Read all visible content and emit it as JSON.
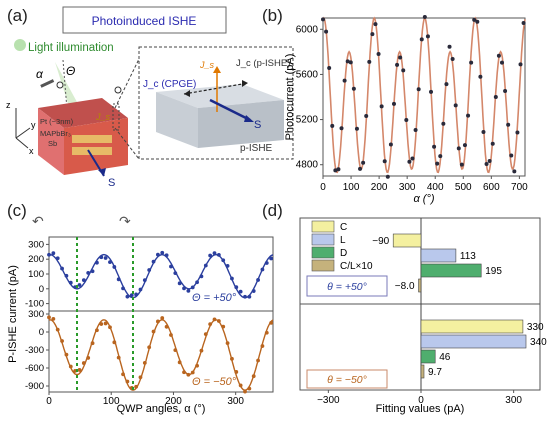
{
  "panels": {
    "a": "(a)",
    "b": "(b)",
    "c": "(c)",
    "d": "(d)"
  },
  "schematic": {
    "title": "Photoinduced ISHE",
    "light": "Light illumination",
    "alpha_sym": "α",
    "theta_sym": "Θ",
    "layer_top": "Pt (~3nm)",
    "layer_mid": "MAPbBr₃",
    "layer_bot": "Sb",
    "spin": "S",
    "axis_z": "z",
    "axis_y": "y",
    "axis_x": "x",
    "jc_cpge": "J_c (CPGE)",
    "jc_pishe": "J_c (p-ISHE)",
    "js": "J_s",
    "box_label": "p-ISHE",
    "box_spin": "S"
  },
  "chart_data": [
    {
      "id": "b",
      "type": "scatter",
      "xlabel": "α (°)",
      "ylabel": "Photocurrent (pA)",
      "xlim": [
        0,
        720
      ],
      "ylim": [
        4700,
        6100
      ],
      "xticks": [
        "0",
        "100",
        "200",
        "300",
        "400",
        "500",
        "600",
        "700"
      ],
      "yticks": [
        "4800",
        "5200",
        "5600",
        "6000"
      ],
      "series": [
        {
          "kind": "points",
          "color": "#2a2a3a"
        },
        {
          "kind": "fit",
          "color": "#d4876a"
        }
      ],
      "fit_params": {
        "offset": 5350,
        "amp1": 600,
        "amp2": 0
      }
    },
    {
      "id": "c",
      "type": "scatter",
      "xlabel": "QWP angles, α (°)",
      "ylabel": "P-ISHE current (pA)",
      "xlim": [
        0,
        360
      ],
      "xticks": [
        "0",
        "100",
        "200",
        "300"
      ],
      "subplots": [
        {
          "label": "Θ = +50°",
          "color": "#2b3f9e",
          "ylim": [
            -150,
            350
          ],
          "yticks": [
            "300",
            "200",
            "100",
            "0",
            "-100"
          ]
        },
        {
          "label": "Θ = −50°",
          "color": "#b9651f",
          "ylim": [
            -1000,
            350
          ],
          "yticks": [
            "300",
            "0",
            "-300",
            "-600",
            "-900"
          ]
        }
      ],
      "vlines": [
        45,
        135
      ]
    },
    {
      "id": "d",
      "type": "bar",
      "xlabel": "Fitting values (pA)",
      "xlim": [
        -380,
        380
      ],
      "xticks": [
        "−300",
        "0",
        "300"
      ],
      "legend": [
        {
          "name": "C",
          "color": "#f4f0a0"
        },
        {
          "name": "L",
          "color": "#b9c8ec"
        },
        {
          "name": "D",
          "color": "#4fae6e"
        },
        {
          "name": "C/L×10",
          "color": "#c5b27c"
        }
      ],
      "groups": [
        {
          "label": "θ = +50°",
          "values": [
            -90,
            113,
            195,
            -8.0
          ],
          "value_labels": [
            "−90",
            "113",
            "195",
            "−8.0"
          ]
        },
        {
          "label": "θ = −50°",
          "values": [
            330,
            340,
            46,
            9.7
          ],
          "value_labels": [
            "330",
            "340",
            "46",
            "9.7"
          ]
        }
      ]
    }
  ]
}
